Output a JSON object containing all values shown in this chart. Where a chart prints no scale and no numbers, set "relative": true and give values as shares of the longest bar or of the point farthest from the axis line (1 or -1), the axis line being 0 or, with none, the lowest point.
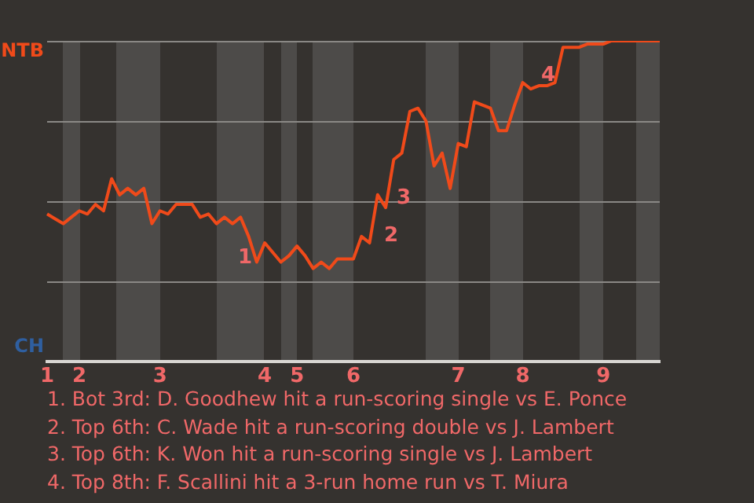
{
  "chart_data": {
    "type": "line",
    "relative": true,
    "categories": [
      "1",
      null,
      null,
      null,
      "2",
      null,
      null,
      null,
      null,
      null,
      null,
      null,
      null,
      null,
      "3",
      null,
      null,
      null,
      null,
      null,
      null,
      null,
      null,
      null,
      null,
      null,
      null,
      "4",
      null,
      null,
      null,
      "5",
      null,
      null,
      null,
      null,
      null,
      null,
      "6",
      null,
      null,
      null,
      null,
      null,
      null,
      null,
      null,
      null,
      null,
      null,
      null,
      "7",
      null,
      null,
      null,
      null,
      null,
      null,
      null,
      "8",
      null,
      null,
      null,
      null,
      null,
      null,
      null,
      null,
      null,
      "9",
      null,
      null,
      null,
      null,
      null,
      null,
      null
    ],
    "series": [
      {
        "values": [
          0.46,
          0.445,
          0.43,
          0.45,
          0.47,
          0.46,
          0.49,
          0.47,
          0.57,
          0.52,
          0.54,
          0.52,
          0.54,
          0.43,
          0.47,
          0.46,
          0.49,
          0.49,
          0.49,
          0.45,
          0.46,
          0.43,
          0.45,
          0.43,
          0.45,
          0.39,
          0.31,
          0.37,
          0.34,
          0.31,
          0.33,
          0.36,
          0.33,
          0.29,
          0.31,
          0.29,
          0.32,
          0.32,
          0.32,
          0.39,
          0.37,
          0.52,
          0.48,
          0.63,
          0.65,
          0.78,
          0.79,
          0.75,
          0.61,
          0.65,
          0.54,
          0.68,
          0.67,
          0.81,
          0.8,
          0.79,
          0.72,
          0.72,
          0.8,
          0.87,
          0.85,
          0.86,
          0.86,
          0.87,
          0.98,
          0.98,
          0.98,
          0.99,
          0.99,
          0.99,
          1,
          1,
          1,
          1,
          1,
          1,
          1
        ],
        "color": "#f04a1a"
      }
    ],
    "grid": "y",
    "legend": false,
    "marker": "none",
    "line_style": "solid",
    "annotations": [
      "NTB",
      "CH",
      "1",
      "2",
      "3",
      "4",
      "1. Bot 3rd: D. Goodhew hit a run-scoring single vs E. Ponce",
      "2. Top 6th: C. Wade hit a run-scoring double vs J. Lambert",
      "3. Top 6th: K. Won hit a run-scoring single vs J. Lambert",
      "4. Top 8th: F. Scallini hit a 3-run home run vs T. Miura"
    ]
  }
}
